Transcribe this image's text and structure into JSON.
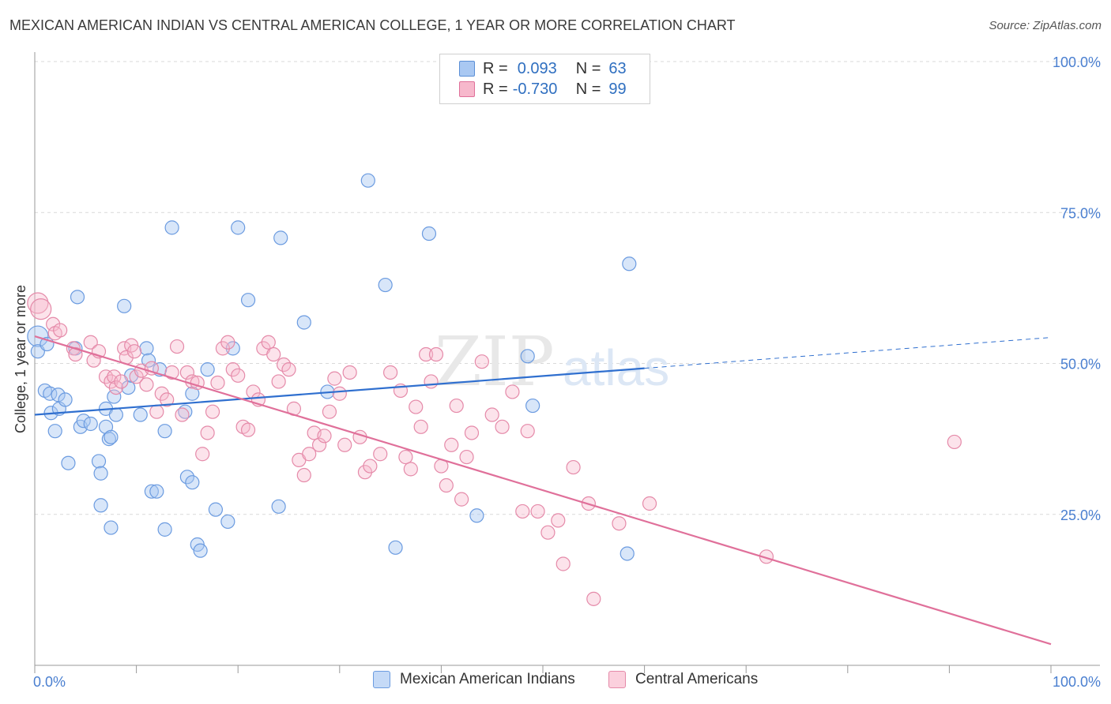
{
  "title": "MEXICAN AMERICAN INDIAN VS CENTRAL AMERICAN COLLEGE, 1 YEAR OR MORE CORRELATION CHART",
  "source": "Source: ZipAtlas.com",
  "watermark": {
    "zip": "ZIP",
    "atlas": "atlas"
  },
  "stats": {
    "r_label": "R =",
    "n_label": "N =",
    "rows": [
      {
        "r": "0.093",
        "n": "63",
        "color": "#a9c8f2",
        "border": "#5b8fd6"
      },
      {
        "r": "-0.730",
        "n": "99",
        "color": "#f7b8cc",
        "border": "#e0709a"
      }
    ]
  },
  "legend": {
    "items": [
      {
        "label": "Mexican American Indians",
        "color": "#c5daf7",
        "border": "#6b9be0"
      },
      {
        "label": "Central Americans",
        "color": "#fbd0dd",
        "border": "#e58aa9"
      }
    ]
  },
  "chart_data": {
    "type": "scatter",
    "title": "MEXICAN AMERICAN INDIAN VS CENTRAL AMERICAN COLLEGE, 1 YEAR OR MORE CORRELATION CHART",
    "xlabel": "",
    "ylabel": "College, 1 year or more",
    "xlim": [
      0,
      100
    ],
    "ylim": [
      0,
      100
    ],
    "x_tick_labels": [
      "0.0%",
      "100.0%"
    ],
    "y_tick_labels": [
      "25.0%",
      "50.0%",
      "75.0%",
      "100.0%"
    ],
    "y_ticks": [
      25,
      50,
      75,
      100
    ],
    "grid": true,
    "legend_position": "bottom",
    "series": [
      {
        "name": "Mexican American Indians",
        "color": "#6b9be0",
        "fill": "rgba(168,200,242,0.45)",
        "line_color": "#2f6fcf",
        "trend": {
          "x": [
            0,
            60
          ],
          "y": [
            41.5,
            49.2
          ]
        },
        "trend_dash": {
          "x": [
            60,
            100
          ],
          "y": [
            49.2,
            54.3
          ]
        },
        "points": [
          [
            0.3,
            54.5
          ],
          [
            0.3,
            52.0
          ],
          [
            1.0,
            45.5
          ],
          [
            1.5,
            45.0
          ],
          [
            1.6,
            41.8
          ],
          [
            2.0,
            38.8
          ],
          [
            2.3,
            44.8
          ],
          [
            2.4,
            42.5
          ],
          [
            3.0,
            44.0
          ],
          [
            3.3,
            33.5
          ],
          [
            4.0,
            52.5
          ],
          [
            4.2,
            61.0
          ],
          [
            4.5,
            39.5
          ],
          [
            4.8,
            40.5
          ],
          [
            5.5,
            40.0
          ],
          [
            6.3,
            33.8
          ],
          [
            6.5,
            31.8
          ],
          [
            6.5,
            26.5
          ],
          [
            7.0,
            39.5
          ],
          [
            7.3,
            37.5
          ],
          [
            7.5,
            37.8
          ],
          [
            7.0,
            42.5
          ],
          [
            7.8,
            44.5
          ],
          [
            8.0,
            41.5
          ],
          [
            8.8,
            59.5
          ],
          [
            9.2,
            46.0
          ],
          [
            9.5,
            48.0
          ],
          [
            7.5,
            22.8
          ],
          [
            10.4,
            41.5
          ],
          [
            11.0,
            52.5
          ],
          [
            11.2,
            50.5
          ],
          [
            11.5,
            28.8
          ],
          [
            12.0,
            28.8
          ],
          [
            12.3,
            49.0
          ],
          [
            12.8,
            38.8
          ],
          [
            12.8,
            22.5
          ],
          [
            13.5,
            72.5
          ],
          [
            14.8,
            42.0
          ],
          [
            15.0,
            31.2
          ],
          [
            15.5,
            30.3
          ],
          [
            15.5,
            45.0
          ],
          [
            16.0,
            20.0
          ],
          [
            16.3,
            19.0
          ],
          [
            17.0,
            49.0
          ],
          [
            17.8,
            25.8
          ],
          [
            19.0,
            23.8
          ],
          [
            19.5,
            52.5
          ],
          [
            20.0,
            72.5
          ],
          [
            21.0,
            60.5
          ],
          [
            24.2,
            70.8
          ],
          [
            26.5,
            56.8
          ],
          [
            24.0,
            26.3
          ],
          [
            28.8,
            45.3
          ],
          [
            32.8,
            80.3
          ],
          [
            34.5,
            63.0
          ],
          [
            35.5,
            19.5
          ],
          [
            38.8,
            71.5
          ],
          [
            43.5,
            24.8
          ],
          [
            48.5,
            51.2
          ],
          [
            49.0,
            43.0
          ],
          [
            58.3,
            18.5
          ],
          [
            58.5,
            66.5
          ],
          [
            1.2,
            53.2
          ]
        ]
      },
      {
        "name": "Central Americans",
        "color": "#e58aa9",
        "fill": "rgba(247,184,204,0.40)",
        "line_color": "#e0709a",
        "trend": {
          "x": [
            0,
            100
          ],
          "y": [
            54.5,
            3.5
          ]
        },
        "points": [
          [
            0.3,
            60.0
          ],
          [
            0.6,
            59.0
          ],
          [
            1.8,
            56.5
          ],
          [
            2.0,
            55.0
          ],
          [
            2.5,
            55.5
          ],
          [
            3.8,
            52.5
          ],
          [
            4.0,
            51.5
          ],
          [
            5.5,
            53.5
          ],
          [
            5.8,
            50.5
          ],
          [
            6.3,
            52.0
          ],
          [
            7.0,
            47.8
          ],
          [
            7.5,
            47.0
          ],
          [
            7.8,
            47.8
          ],
          [
            8.0,
            46.0
          ],
          [
            8.5,
            47.0
          ],
          [
            8.8,
            52.5
          ],
          [
            9.0,
            51.0
          ],
          [
            9.5,
            53.0
          ],
          [
            9.8,
            52.0
          ],
          [
            10.0,
            47.8
          ],
          [
            10.5,
            48.8
          ],
          [
            11.0,
            46.5
          ],
          [
            11.5,
            49.2
          ],
          [
            12.0,
            42.0
          ],
          [
            12.5,
            45.0
          ],
          [
            13.0,
            44.0
          ],
          [
            13.5,
            48.5
          ],
          [
            14.0,
            52.8
          ],
          [
            14.5,
            41.5
          ],
          [
            15.0,
            48.5
          ],
          [
            15.5,
            47.0
          ],
          [
            16.0,
            46.8
          ],
          [
            16.5,
            35.0
          ],
          [
            17.0,
            38.5
          ],
          [
            17.5,
            42.0
          ],
          [
            18.0,
            46.8
          ],
          [
            18.5,
            52.5
          ],
          [
            19.0,
            53.5
          ],
          [
            19.5,
            49.0
          ],
          [
            20.0,
            48.0
          ],
          [
            20.5,
            39.5
          ],
          [
            21.0,
            39.0
          ],
          [
            21.5,
            45.3
          ],
          [
            22.0,
            44.0
          ],
          [
            22.5,
            52.5
          ],
          [
            23.0,
            53.5
          ],
          [
            23.5,
            51.5
          ],
          [
            24.0,
            47.0
          ],
          [
            24.5,
            49.8
          ],
          [
            25.0,
            49.0
          ],
          [
            25.5,
            42.5
          ],
          [
            26.0,
            34.0
          ],
          [
            26.5,
            31.5
          ],
          [
            27.0,
            35.0
          ],
          [
            27.5,
            38.5
          ],
          [
            28.0,
            36.5
          ],
          [
            28.5,
            38.0
          ],
          [
            29.0,
            42.0
          ],
          [
            29.5,
            47.5
          ],
          [
            30.0,
            45.0
          ],
          [
            30.5,
            36.5
          ],
          [
            31.0,
            48.5
          ],
          [
            32.0,
            37.8
          ],
          [
            32.5,
            32.0
          ],
          [
            33.0,
            33.0
          ],
          [
            34.0,
            35.0
          ],
          [
            35.0,
            48.5
          ],
          [
            36.0,
            45.5
          ],
          [
            36.5,
            34.5
          ],
          [
            37.0,
            32.5
          ],
          [
            37.5,
            42.8
          ],
          [
            38.0,
            39.5
          ],
          [
            38.5,
            51.5
          ],
          [
            39.0,
            47.0
          ],
          [
            39.5,
            51.5
          ],
          [
            40.0,
            33.0
          ],
          [
            40.5,
            29.8
          ],
          [
            41.0,
            36.5
          ],
          [
            41.5,
            43.0
          ],
          [
            42.0,
            27.5
          ],
          [
            42.5,
            34.5
          ],
          [
            43.0,
            38.5
          ],
          [
            44.0,
            50.3
          ],
          [
            45.0,
            41.5
          ],
          [
            46.0,
            39.5
          ],
          [
            47.0,
            45.3
          ],
          [
            48.0,
            25.5
          ],
          [
            48.5,
            38.8
          ],
          [
            49.5,
            25.5
          ],
          [
            50.5,
            22.0
          ],
          [
            51.5,
            24.0
          ],
          [
            52.0,
            16.8
          ],
          [
            53.0,
            32.8
          ],
          [
            54.5,
            26.8
          ],
          [
            55.0,
            11.0
          ],
          [
            57.5,
            23.5
          ],
          [
            60.5,
            26.8
          ],
          [
            72.0,
            18.0
          ],
          [
            90.5,
            37.0
          ]
        ]
      }
    ]
  }
}
